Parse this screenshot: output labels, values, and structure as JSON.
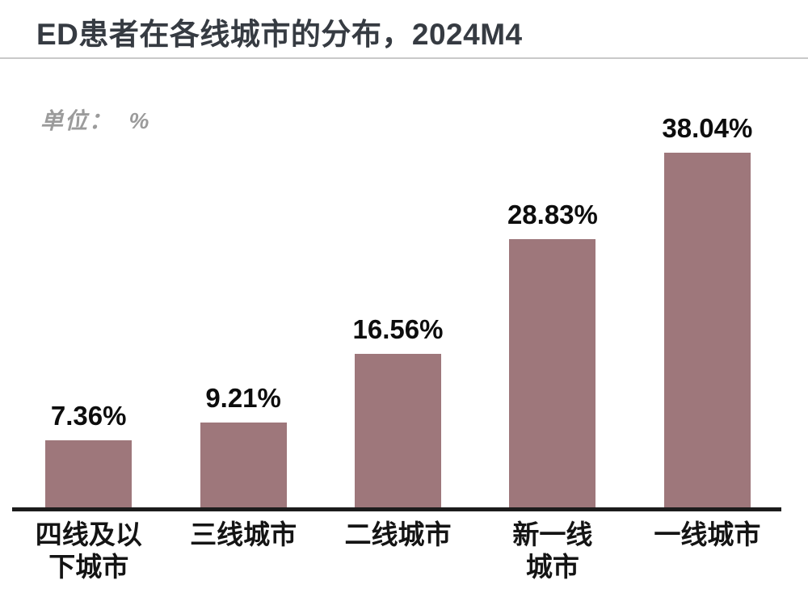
{
  "header": {
    "title": "ED患者在各线城市的分布，2024M4"
  },
  "unit_label": "单位：  %",
  "chart_data": {
    "type": "bar",
    "orientation": "vertical",
    "title": "ED患者在各线城市的分布，2024M4",
    "unit": "%",
    "categories": [
      "四线及以下城市",
      "三线城市",
      "二线城市",
      "新一线城市",
      "一线城市"
    ],
    "category_display_lines": [
      [
        "四线及以",
        "下城市"
      ],
      [
        "三线城市"
      ],
      [
        "二线城市"
      ],
      [
        "新一线",
        "城市"
      ],
      [
        "一线城市"
      ]
    ],
    "values": [
      7.36,
      9.21,
      16.56,
      28.83,
      38.04
    ],
    "value_labels": [
      "7.36%",
      "9.21%",
      "16.56%",
      "28.83%",
      "38.04%"
    ],
    "ylim": [
      0,
      42
    ],
    "grid": false,
    "legend": false,
    "bar_color": "#9e777b",
    "axis_color": "#1c1c1c",
    "value_label_color": "#0d0d0d",
    "category_label_color": "#141414"
  },
  "colors": {
    "background": "#ffffff",
    "title_text": "#363b42",
    "divider": "#c9c9c9",
    "unit_label_text": "#9b9b9b"
  }
}
